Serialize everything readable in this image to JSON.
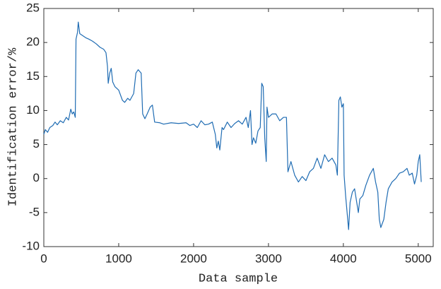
{
  "chart_data": {
    "type": "line",
    "xlabel": "Data sample",
    "ylabel": "Identification error/%",
    "xlim": [
      0,
      5200
    ],
    "ylim": [
      -10,
      25
    ],
    "xticks": [
      0,
      1000,
      2000,
      3000,
      4000,
      5000
    ],
    "yticks": [
      -10,
      -5,
      0,
      5,
      10,
      15,
      20,
      25
    ],
    "series": [
      {
        "color": "#1f6cb3",
        "x": [
          0,
          20,
          50,
          80,
          120,
          150,
          180,
          220,
          260,
          300,
          330,
          360,
          380,
          400,
          420,
          430,
          450,
          460,
          480,
          520,
          560,
          600,
          650,
          700,
          750,
          800,
          830,
          850,
          860,
          880,
          900,
          920,
          950,
          1000,
          1050,
          1080,
          1120,
          1150,
          1200,
          1230,
          1260,
          1300,
          1320,
          1350,
          1380,
          1420,
          1450,
          1480,
          1550,
          1600,
          1700,
          1800,
          1900,
          1950,
          2000,
          2050,
          2100,
          2150,
          2200,
          2250,
          2290,
          2310,
          2330,
          2350,
          2380,
          2400,
          2450,
          2500,
          2550,
          2600,
          2650,
          2700,
          2730,
          2760,
          2780,
          2800,
          2830,
          2860,
          2890,
          2910,
          2930,
          2950,
          2970,
          2980,
          3000,
          3050,
          3100,
          3150,
          3200,
          3240,
          3260,
          3300,
          3350,
          3400,
          3450,
          3500,
          3550,
          3600,
          3650,
          3700,
          3750,
          3800,
          3850,
          3900,
          3920,
          3940,
          3960,
          3980,
          4000,
          4010,
          4030,
          4050,
          4070,
          4090,
          4120,
          4150,
          4200,
          4220,
          4260,
          4300,
          4350,
          4400,
          4430,
          4460,
          4480,
          4500,
          4540,
          4570,
          4600,
          4650,
          4700,
          4750,
          4800,
          4850,
          4880,
          4920,
          4950,
          4980,
          5000,
          5020,
          5040
        ],
        "values": [
          6.5,
          7.2,
          6.8,
          7.5,
          7.8,
          8.3,
          7.9,
          8.5,
          8.2,
          9.0,
          8.6,
          10.2,
          9.5,
          9.8,
          9.0,
          20.5,
          21.5,
          23.0,
          21.3,
          21.0,
          20.7,
          20.5,
          20.2,
          19.8,
          19.3,
          19.0,
          18.5,
          16.5,
          14.0,
          15.5,
          16.2,
          14.2,
          13.5,
          13.0,
          11.5,
          11.2,
          11.8,
          11.5,
          12.5,
          15.5,
          16.0,
          15.5,
          9.5,
          8.8,
          9.5,
          10.5,
          10.8,
          8.3,
          8.2,
          8.0,
          8.2,
          8.1,
          8.2,
          7.8,
          8.0,
          7.5,
          8.5,
          7.9,
          8.0,
          8.3,
          6.5,
          4.5,
          5.5,
          4.2,
          7.5,
          7.2,
          8.3,
          7.5,
          8.1,
          8.5,
          8.0,
          9.0,
          7.5,
          10.0,
          5.0,
          6.0,
          5.2,
          7.0,
          7.5,
          14.0,
          13.5,
          6.0,
          2.5,
          10.5,
          9.0,
          9.5,
          9.5,
          8.5,
          9.0,
          9.0,
          1.0,
          2.5,
          0.5,
          -0.5,
          0.3,
          -0.3,
          1.0,
          1.5,
          3.0,
          1.5,
          3.5,
          2.5,
          3.0,
          2.0,
          0.5,
          11.5,
          12.0,
          10.5,
          11.0,
          0.5,
          -2.5,
          -5.0,
          -7.5,
          -3.5,
          -2.0,
          -1.5,
          -5.0,
          -3.0,
          -2.5,
          -1.0,
          0.5,
          1.5,
          -0.5,
          -2.0,
          -6.0,
          -7.2,
          -6.0,
          -3.5,
          -1.5,
          -0.5,
          0.0,
          0.8,
          1.0,
          1.5,
          0.5,
          0.8,
          -0.8,
          0.5,
          2.5,
          3.5,
          -0.5
        ]
      }
    ]
  }
}
